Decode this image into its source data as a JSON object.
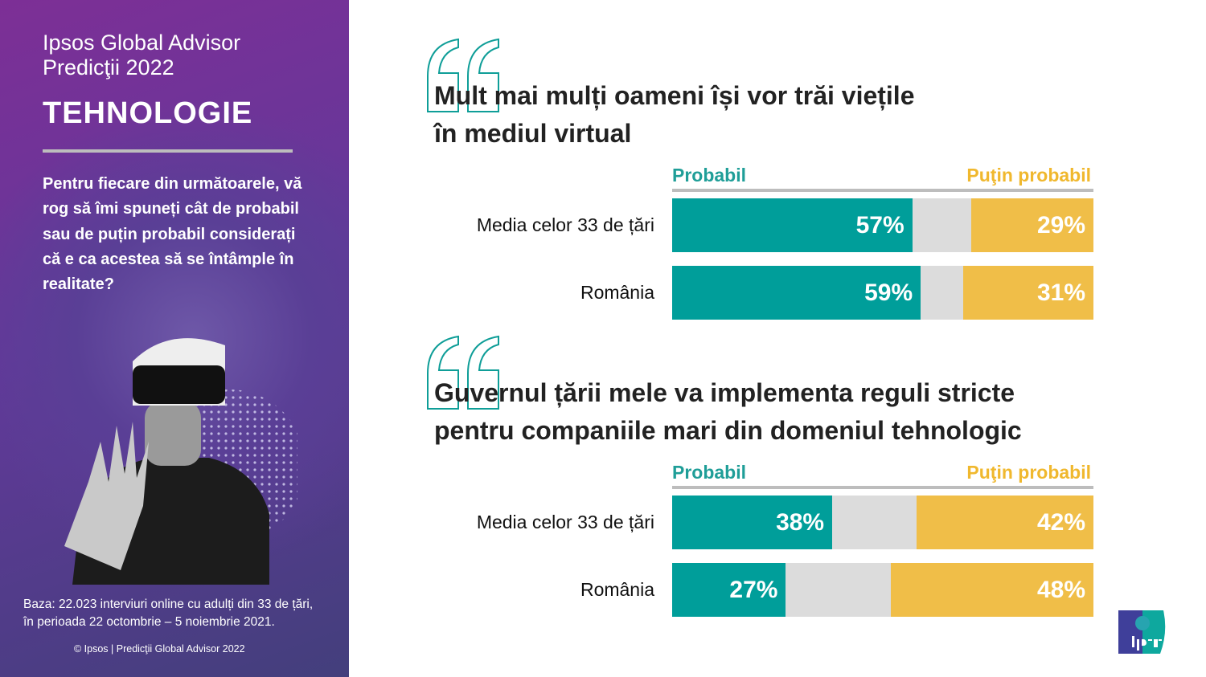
{
  "sidebar": {
    "title_line1": "Ipsos Global Advisor",
    "title_line2": "Predicţii 2022",
    "section": "TEHNOLOGIE",
    "question": "Pentru fiecare din următoarele, vă rog să îmi spuneți cât de probabil sau de puțin probabil considerați că e ca acestea să se întâmple în realitate?",
    "base_line1": "Baza: 22.023 interviuri online cu adulți din 33 de țări,",
    "base_line2": "în perioada 22 octombrie – 5 noiembrie 2021.",
    "copyright": "© Ipsos | Predicţii Global Advisor 2022"
  },
  "colors": {
    "likely": "#009e9a",
    "unlikely": "#f0be48",
    "neutral": "#dcdcdc",
    "accent_text_likely": "#1f9e98",
    "accent_text_unlikely": "#f0b82e"
  },
  "logo_text": "Ipsos",
  "chart_data": [
    {
      "type": "bar",
      "stacked": true,
      "title_line1": "Mult mai mulți oameni își vor trăi viețile",
      "title_line2": "în mediul virtual",
      "legend": [
        "Probabil",
        "Puţin probabil"
      ],
      "categories": [
        "Media celor 33 de țări",
        "România"
      ],
      "series": [
        {
          "name": "Probabil",
          "values": [
            57,
            59
          ],
          "labels": [
            "57%",
            "59%"
          ]
        },
        {
          "name": "Puţin probabil",
          "values": [
            29,
            31
          ],
          "labels": [
            "29%",
            "31%"
          ]
        }
      ]
    },
    {
      "type": "bar",
      "stacked": true,
      "title_line1": "Guvernul țării mele va implementa reguli stricte",
      "title_line2": "pentru companiile mari din domeniul tehnologic",
      "legend": [
        "Probabil",
        "Puţin probabil"
      ],
      "categories": [
        "Media celor 33 de țări",
        "România"
      ],
      "series": [
        {
          "name": "Probabil",
          "values": [
            38,
            27
          ],
          "labels": [
            "38%",
            "27%"
          ]
        },
        {
          "name": "Puţin probabil",
          "values": [
            42,
            48
          ],
          "labels": [
            "42%",
            "48%"
          ]
        }
      ]
    }
  ]
}
